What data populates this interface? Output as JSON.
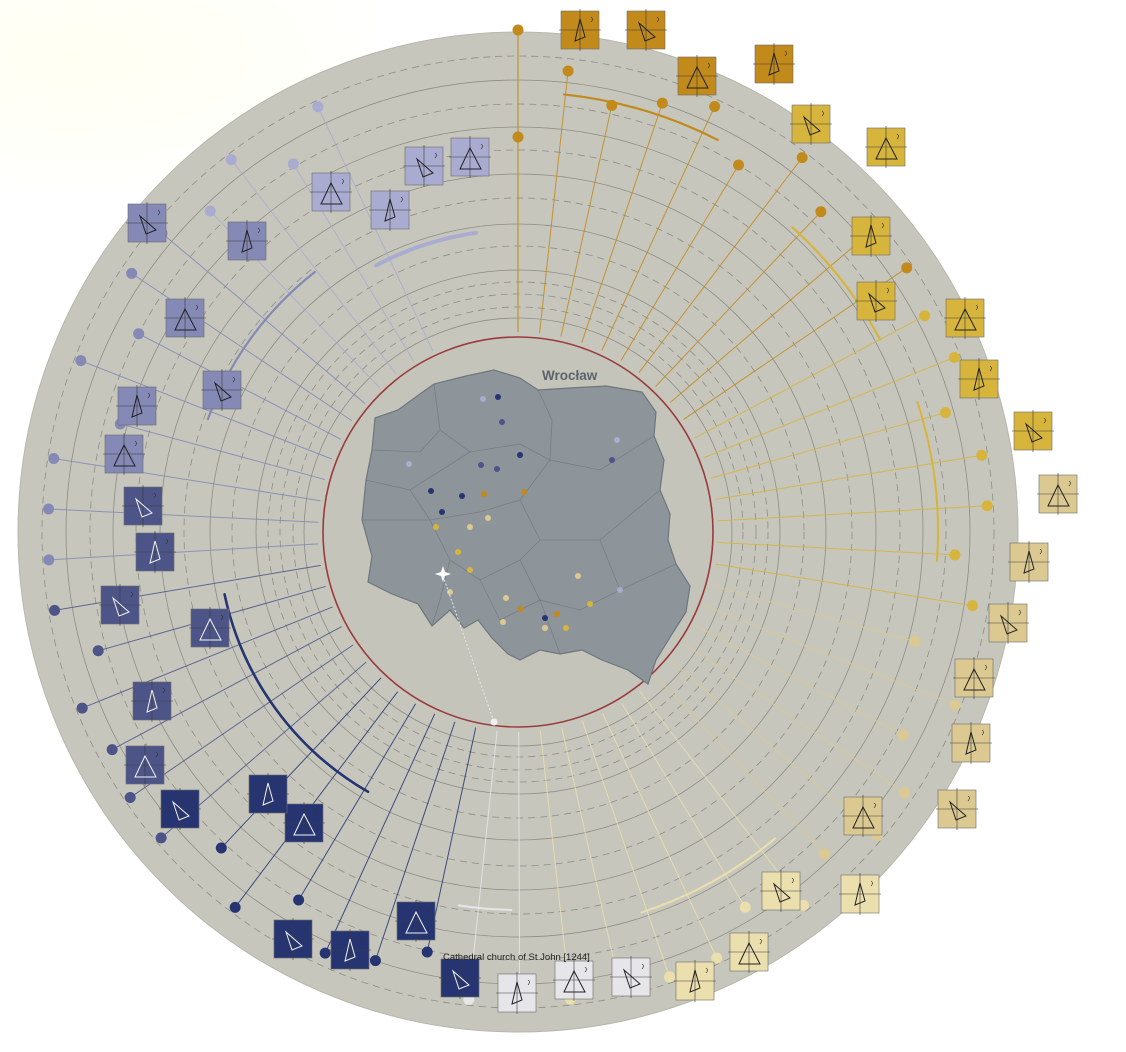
{
  "city_label": "Wrocław",
  "highlight_caption": "Cathedral church of St John [1244]",
  "colors": {
    "disc": "#c6c6bc",
    "map": "#8e959a",
    "map_border": "#6e767c",
    "inner_ring": "#9a3b3b",
    "gold_dark": "#c28a1a",
    "gold_mid": "#d7b43c",
    "gold_light": "#dcc992",
    "gold_pale": "#ecdfae",
    "navy_dark": "#263572",
    "navy_mid": "#4d5588",
    "lav_mid": "#8489b5",
    "lav_light": "#a9acd0",
    "white": "#e6e6ea"
  },
  "marker_icons": [
    "orientation-glyph",
    "triangle-glyph"
  ]
}
